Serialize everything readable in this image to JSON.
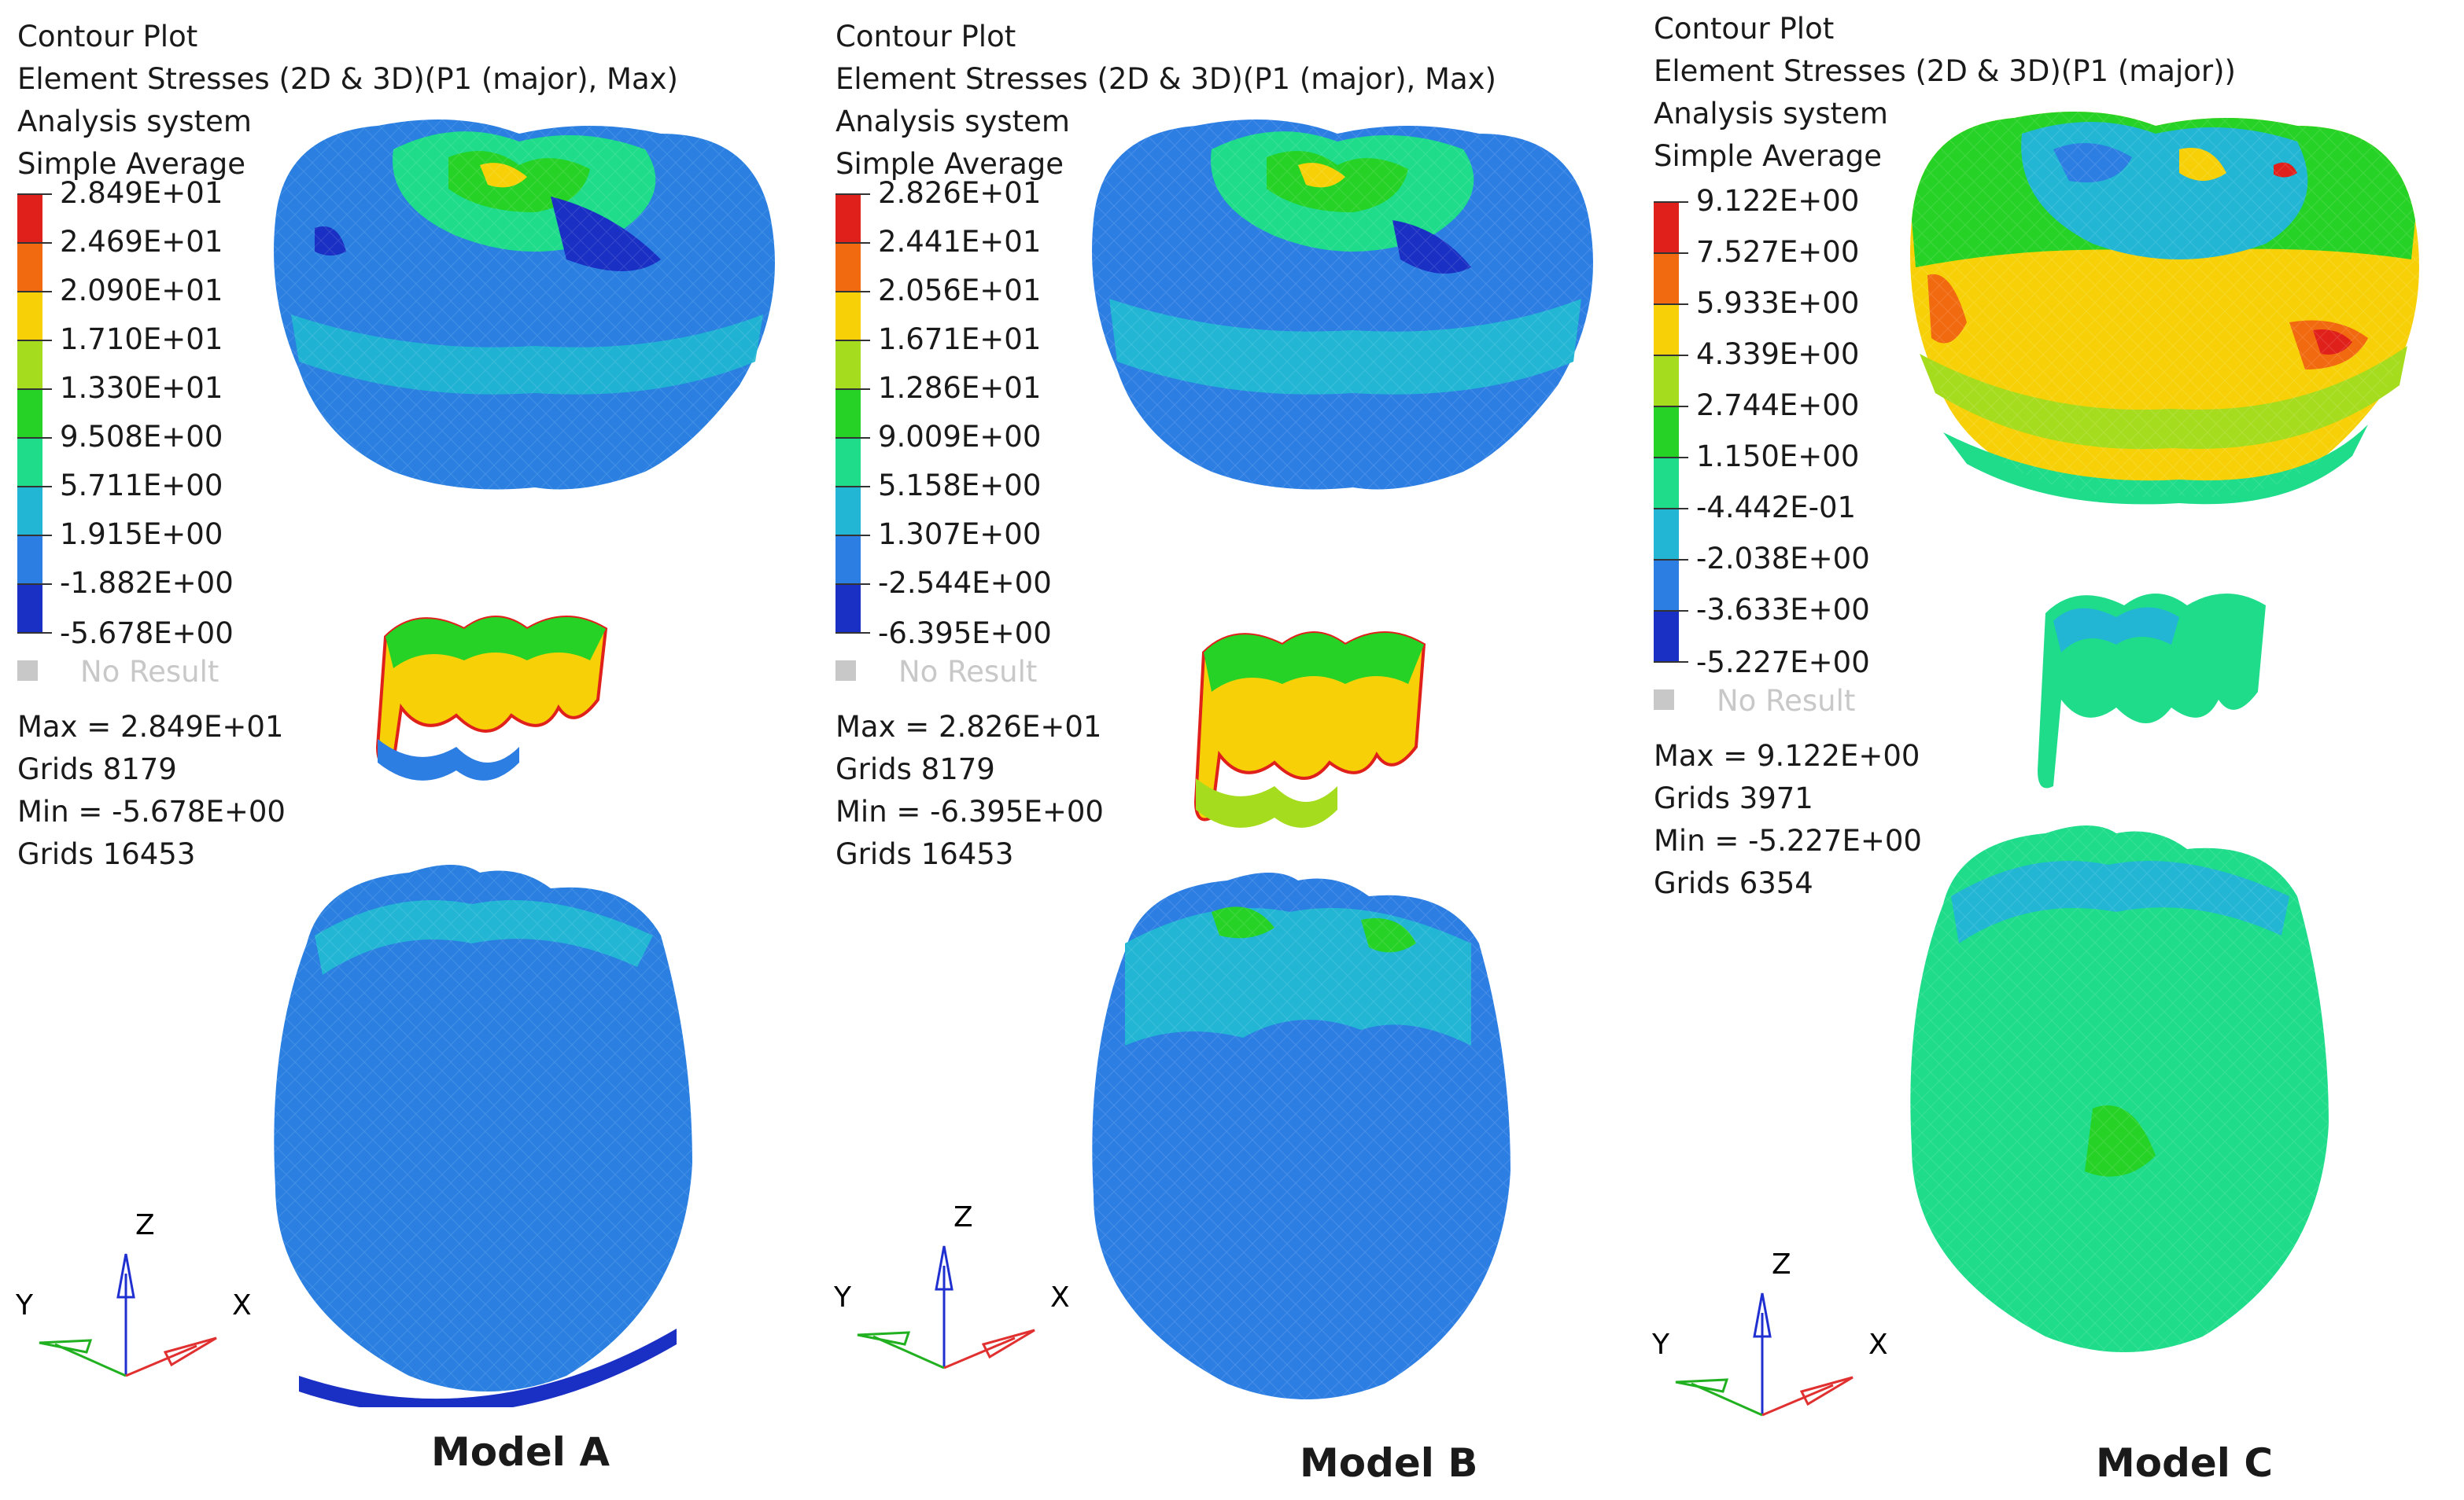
{
  "panels": [
    {
      "caption": "Model A",
      "header": [
        "Contour Plot",
        "Element Stresses (2D & 3D)(P1 (major), Max)",
        "Analysis system",
        "Simple Average"
      ],
      "scale_values": [
        "2.849E+01",
        "2.469E+01",
        "2.090E+01",
        "1.710E+01",
        "1.330E+01",
        "9.508E+00",
        "5.711E+00",
        "1.915E+00",
        "-1.882E+00",
        "-5.678E+00"
      ],
      "no_result": "No Result",
      "stats": [
        "Max =  2.849E+01",
        "Grids 8179",
        "Min = -5.678E+00",
        "Grids 16453"
      ],
      "axes": {
        "z": "Z",
        "y": "Y",
        "x": "X"
      }
    },
    {
      "caption": "Model B",
      "header": [
        "Contour Plot",
        "Element Stresses (2D & 3D)(P1 (major), Max)",
        "Analysis system",
        "Simple Average"
      ],
      "scale_values": [
        "2.826E+01",
        "2.441E+01",
        "2.056E+01",
        "1.671E+01",
        "1.286E+01",
        "9.009E+00",
        "5.158E+00",
        "1.307E+00",
        "-2.544E+00",
        "-6.395E+00"
      ],
      "no_result": "No Result",
      "stats": [
        "Max =  2.826E+01",
        "Grids 8179",
        "Min = -6.395E+00",
        "Grids 16453"
      ],
      "axes": {
        "z": "Z",
        "y": "Y",
        "x": "X"
      }
    },
    {
      "caption": "Model C",
      "header": [
        "Contour Plot",
        "Element Stresses (2D & 3D)(P1 (major))",
        "Analysis system",
        "Simple Average"
      ],
      "scale_values": [
        "9.122E+00",
        "7.527E+00",
        "5.933E+00",
        "4.339E+00",
        "2.744E+00",
        "1.150E+00",
        "-4.442E-01",
        "-2.038E+00",
        "-3.633E+00",
        "-5.227E+00"
      ],
      "no_result": "No Result",
      "stats": [
        "Max =  9.122E+00",
        "Grids 3971",
        "Min = -5.227E+00",
        "Grids 6354"
      ],
      "axes": {
        "z": "Z",
        "y": "Y",
        "x": "X"
      }
    }
  ],
  "colors": {
    "scale": [
      "#e0201b",
      "#f26a10",
      "#f7d008",
      "#a6dc1e",
      "#27d226",
      "#1edc8a",
      "#22b6d4",
      "#2d7ee3",
      "#1a2fc4"
    ],
    "no_result": "#c8c8c8",
    "axis_x": "#e03030",
    "axis_y": "#20b020",
    "axis_z": "#2030d0"
  }
}
